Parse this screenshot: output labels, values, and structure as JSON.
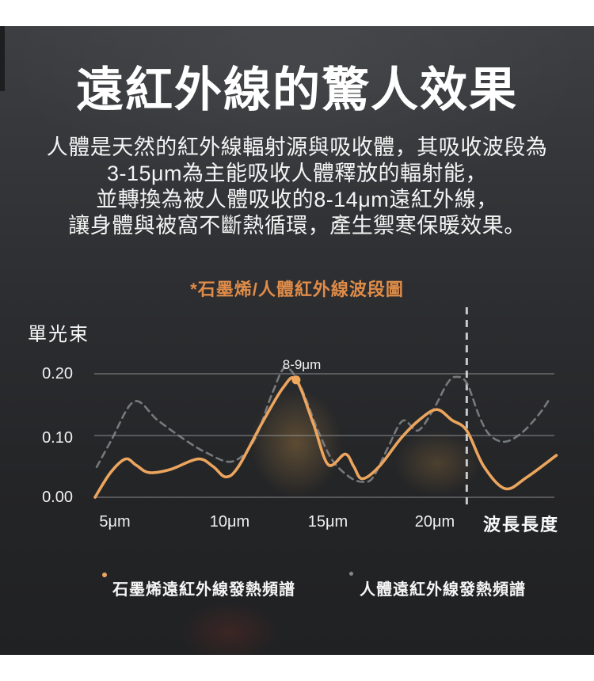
{
  "page": {
    "title": "遠紅外線的驚人效果",
    "paragraph_lines": [
      "人體是天然的紅外線輻射源與吸收體，其吸收波段為",
      "3-15μm為主能吸收人體釋放的輻射能，",
      "並轉換為被人體吸收的8-14μm遠紅外線，",
      "讓身體與被窩不斷熱循環，產生禦寒保暖效果。"
    ]
  },
  "colors": {
    "panel_top": "#3d3f42",
    "panel_bottom": "#202123",
    "title_text": "#ffffff",
    "chart_title_orange": "#e08c48",
    "graphene_orange": "#eca55e",
    "human_gray": "#85878a",
    "gridline": "#b8bcc0",
    "reference_line": "#d9dbdd"
  },
  "chart_data": {
    "type": "line",
    "title": "*石墨烯/人體紅外線波段圖",
    "ylabel": "單光束",
    "xlabel": "波長長度",
    "x_tick_labels": [
      "5μm",
      "10μm",
      "15μm",
      "20μm"
    ],
    "y_tick_labels": [
      "0.20",
      "0.10",
      "0.00"
    ],
    "y_tick_values": [
      0.2,
      0.1,
      0.0
    ],
    "xlim": [
      4.0,
      25.8
    ],
    "ylim": [
      0,
      0.22
    ],
    "grid": "horizontal",
    "legend_position": "bottom",
    "annotation": {
      "text": "8-9μm",
      "x": 13.5,
      "y": 0.19
    },
    "reference_line_x": 21.5,
    "series": [
      {
        "name": "石墨烯遠紅外線發熱頻譜",
        "style": "solid",
        "color": "#eca55e",
        "points": [
          [
            4.07,
            0.0
          ],
          [
            4.8,
            0.04
          ],
          [
            5.5,
            0.062
          ],
          [
            6.0,
            0.052
          ],
          [
            6.6,
            0.04
          ],
          [
            7.6,
            0.045
          ],
          [
            8.9,
            0.062
          ],
          [
            9.6,
            0.05
          ],
          [
            10.2,
            0.033
          ],
          [
            10.8,
            0.05
          ],
          [
            11.9,
            0.12
          ],
          [
            12.9,
            0.178
          ],
          [
            13.5,
            0.19
          ],
          [
            14.3,
            0.12
          ],
          [
            15.0,
            0.053
          ],
          [
            15.8,
            0.07
          ],
          [
            16.2,
            0.05
          ],
          [
            16.6,
            0.03
          ],
          [
            17.4,
            0.05
          ],
          [
            18.4,
            0.095
          ],
          [
            19.3,
            0.126
          ],
          [
            20.1,
            0.142
          ],
          [
            20.8,
            0.125
          ],
          [
            21.5,
            0.108
          ],
          [
            22.3,
            0.05
          ],
          [
            23.3,
            0.014
          ],
          [
            24.3,
            0.032
          ],
          [
            25.7,
            0.068
          ]
        ]
      },
      {
        "name": "人體遠紅外線發熱頻譜",
        "style": "dashed",
        "color": "#85878a",
        "points": [
          [
            4.15,
            0.049
          ],
          [
            4.8,
            0.09
          ],
          [
            5.9,
            0.155
          ],
          [
            7.0,
            0.125
          ],
          [
            8.2,
            0.095
          ],
          [
            9.3,
            0.072
          ],
          [
            10.5,
            0.058
          ],
          [
            11.5,
            0.09
          ],
          [
            12.4,
            0.17
          ],
          [
            13.0,
            0.21
          ],
          [
            13.7,
            0.18
          ],
          [
            14.5,
            0.11
          ],
          [
            15.2,
            0.06
          ],
          [
            16.0,
            0.033
          ],
          [
            16.6,
            0.025
          ],
          [
            17.1,
            0.032
          ],
          [
            17.8,
            0.08
          ],
          [
            18.5,
            0.124
          ],
          [
            19.2,
            0.108
          ],
          [
            19.9,
            0.14
          ],
          [
            20.6,
            0.185
          ],
          [
            21.0,
            0.195
          ],
          [
            21.5,
            0.185
          ],
          [
            22.1,
            0.13
          ],
          [
            22.6,
            0.1
          ],
          [
            23.3,
            0.09
          ],
          [
            24.1,
            0.105
          ],
          [
            24.9,
            0.135
          ],
          [
            25.4,
            0.16
          ]
        ]
      }
    ]
  }
}
